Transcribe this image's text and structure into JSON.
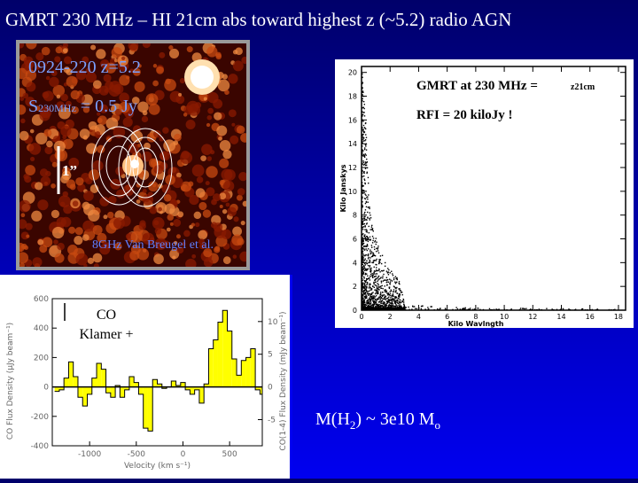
{
  "slide": {
    "title": "GMRT 230 MHz  – HI 21cm abs toward highest z (~5.2) radio AGN",
    "radio_image": {
      "source_label": "0924-220 z=5.2",
      "flux_prefix": "S",
      "flux_subscript": "230MHz",
      "flux_value": " = 0.5 Jy",
      "scale_bar_label": "1”",
      "contour_credit": "8GHz Van Breugel et al."
    },
    "mass_estimate": {
      "prefix": "M(H",
      "subscript": "2",
      "suffix": ") ~ 3e10 M",
      "sun_symbol": "o"
    }
  },
  "colors": {
    "background_top": "#00006a",
    "background_bottom": "#0000f0",
    "spectrum_fill": "#ffff00",
    "map_hot": "#ffb060",
    "map_dark": "#3a0500"
  },
  "chart_data": [
    {
      "type": "scatter",
      "annotation_1": "GMRT  at 230 MHz = ",
      "annotation_1_sub": "z21cm",
      "annotation_2": "RFI = 20 kiloJy !",
      "xlabel": "Kilo Wavlngth",
      "ylabel": "Kilo Janskys",
      "xlim": [
        0,
        18.5
      ],
      "ylim": [
        0,
        20.5
      ],
      "xticks": [
        "0",
        "2",
        "4",
        "6",
        "8",
        "10",
        "12",
        "14",
        "16",
        "18"
      ],
      "yticks": [
        "0",
        "2",
        "4",
        "6",
        "8",
        "10",
        "12",
        "14",
        "16",
        "18",
        "20"
      ],
      "amplitude_envelope": [
        [
          0,
          20
        ],
        [
          0.3,
          15
        ],
        [
          0.5,
          9
        ],
        [
          0.8,
          6.5
        ],
        [
          1.2,
          5.5
        ],
        [
          1.6,
          4
        ],
        [
          2.2,
          3
        ],
        [
          2.6,
          2.5
        ],
        [
          3,
          0.5
        ],
        [
          5,
          0.3
        ],
        [
          8,
          0.15
        ],
        [
          18,
          0.1
        ]
      ]
    },
    {
      "type": "bar",
      "title_lines": [
        "CO",
        "Klamer +"
      ],
      "xlabel": "Velocity (km s⁻¹)",
      "ylabel": "CO Flux Density (μJy beam⁻¹)",
      "ylabel_right": "CO(1-4) Flux Density (mJy beam⁻¹)",
      "xlim": [
        -1400,
        850
      ],
      "ylim": [
        -400,
        600
      ],
      "xticks": [
        "-1000",
        "-500",
        "0",
        "500"
      ],
      "yticks": [
        "-400",
        "-200",
        "0",
        "200",
        "400",
        "600"
      ],
      "yticks_right": [
        "-5",
        "0",
        "5",
        "10"
      ],
      "bin_width": 50,
      "x_start": -1375,
      "values": [
        -30,
        -20,
        60,
        170,
        70,
        -70,
        -130,
        -50,
        60,
        160,
        120,
        -40,
        -70,
        10,
        -70,
        -20,
        70,
        30,
        -50,
        -280,
        -300,
        50,
        20,
        -10,
        0,
        40,
        10,
        30,
        -20,
        -50,
        -20,
        -110,
        20,
        260,
        320,
        440,
        520,
        380,
        190,
        80,
        180,
        200,
        260,
        -20,
        -50,
        -10,
        -110,
        -30,
        10,
        110,
        70,
        60,
        -20
      ]
    }
  ]
}
